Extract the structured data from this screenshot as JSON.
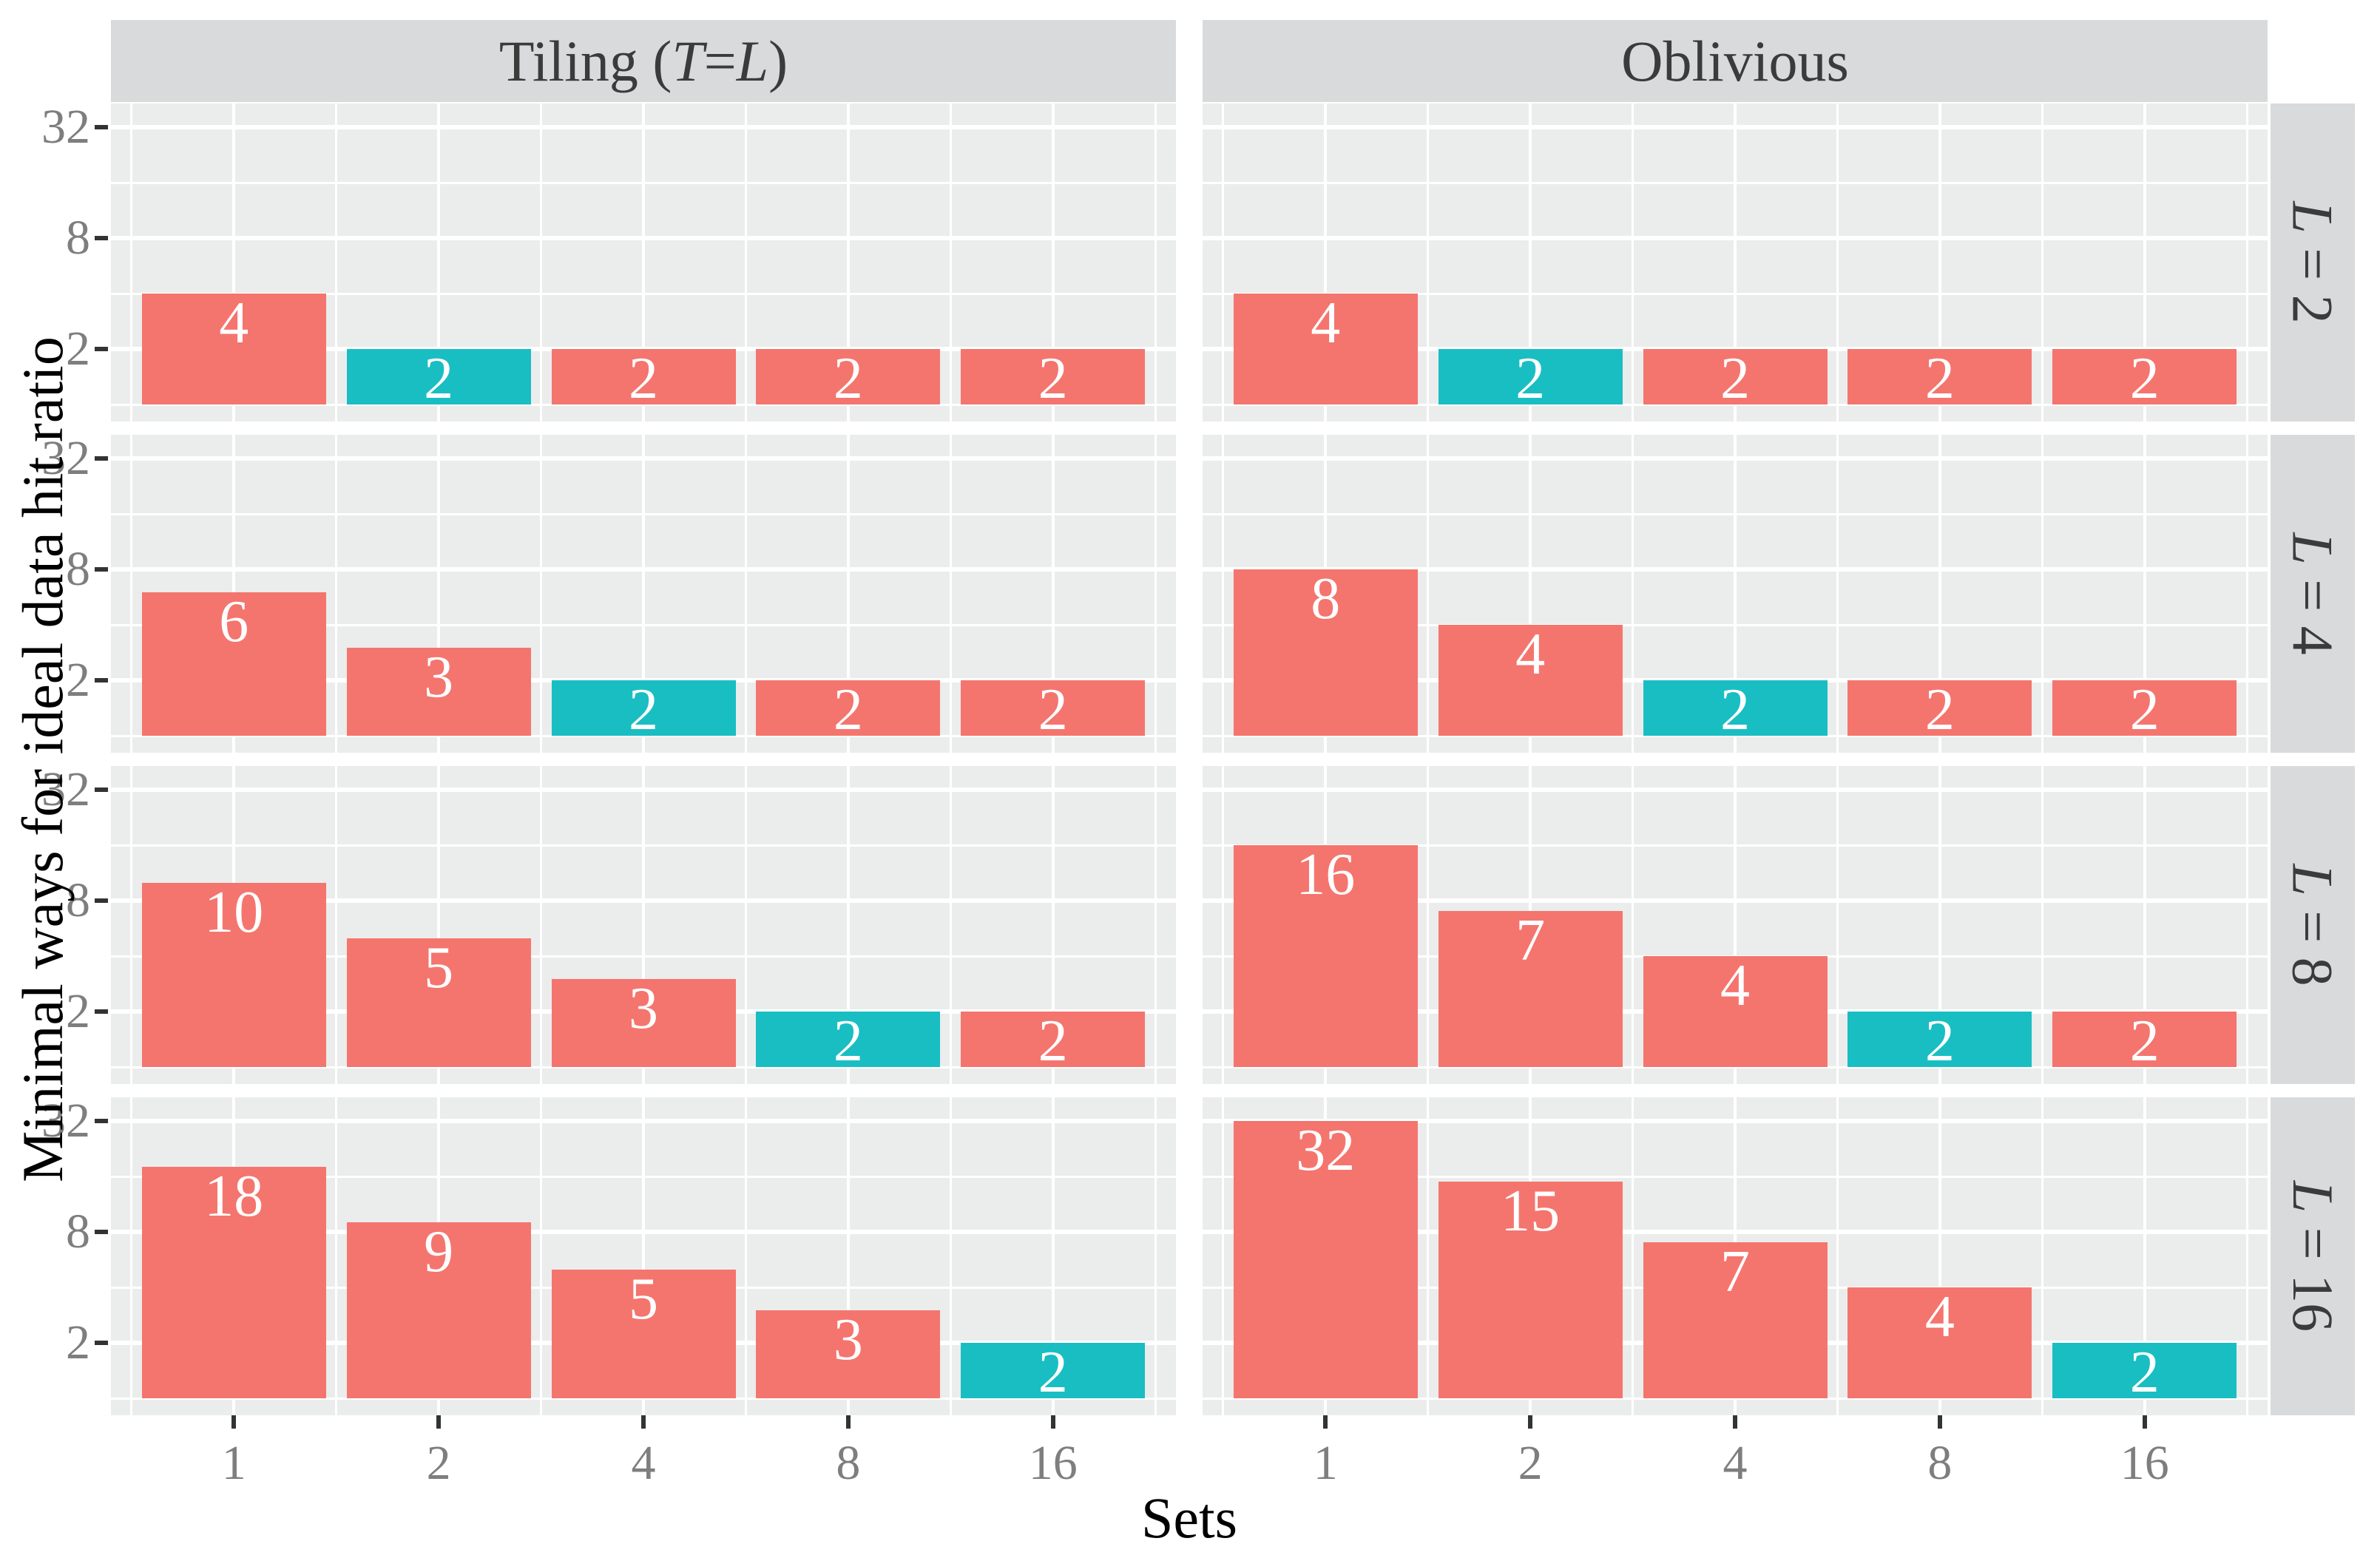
{
  "figure": {
    "y_axis_title": "Minimal ways for ideal data hit ratio",
    "x_axis_title": "Sets",
    "y_tick_labels": [
      "32",
      "8",
      "2"
    ],
    "x_tick_labels": [
      "1",
      "2",
      "4",
      "8",
      "16"
    ],
    "colors": {
      "bar_default": "#F4756E",
      "bar_highlight": "#19BEC3",
      "bar_label": "#FFFFFF",
      "panel_bg": "#EBECEC",
      "strip_bg": "#D9DADB",
      "strip_text": "#3B3B3B",
      "grid": "#FFFFFF",
      "tick_label": "#7E7E7E",
      "tick_mark": "#333333",
      "axis_title": "#000000"
    }
  },
  "chart_data": {
    "type": "bar",
    "title": "",
    "xlabel": "Sets",
    "ylabel": "Minimal ways for ideal data hit ratio",
    "x_categories": [
      1,
      2,
      4,
      8,
      16
    ],
    "y_scale": "log2",
    "y_breaks": [
      2,
      8,
      32
    ],
    "y_minor_breaks": [
      1,
      4,
      16
    ],
    "y_range": [
      1,
      38
    ],
    "grid": "on",
    "legend": "none",
    "col_facets": [
      "Tiling (T = L)",
      "Oblivious"
    ],
    "row_facets": [
      "L = 2",
      "L = 4",
      "L = 8",
      "L = 16"
    ],
    "facets": [
      {
        "col": 0,
        "row": 0,
        "col_label": "Tiling (T = L)",
        "row_label": "L = 2",
        "values": [
          4,
          2,
          2,
          2,
          2
        ],
        "highlight_x": 2
      },
      {
        "col": 0,
        "row": 1,
        "col_label": "Tiling (T = L)",
        "row_label": "L = 4",
        "values": [
          6,
          3,
          2,
          2,
          2
        ],
        "highlight_x": 4
      },
      {
        "col": 0,
        "row": 2,
        "col_label": "Tiling (T = L)",
        "row_label": "L = 8",
        "values": [
          10,
          5,
          3,
          2,
          2
        ],
        "highlight_x": 8
      },
      {
        "col": 0,
        "row": 3,
        "col_label": "Tiling (T = L)",
        "row_label": "L = 16",
        "values": [
          18,
          9,
          5,
          3,
          2
        ],
        "highlight_x": 16
      },
      {
        "col": 1,
        "row": 0,
        "col_label": "Oblivious",
        "row_label": "L = 2",
        "values": [
          4,
          2,
          2,
          2,
          2
        ],
        "highlight_x": 2
      },
      {
        "col": 1,
        "row": 1,
        "col_label": "Oblivious",
        "row_label": "L = 4",
        "values": [
          8,
          4,
          2,
          2,
          2
        ],
        "highlight_x": 4
      },
      {
        "col": 1,
        "row": 2,
        "col_label": "Oblivious",
        "row_label": "L = 8",
        "values": [
          16,
          7,
          4,
          2,
          2
        ],
        "highlight_x": 8
      },
      {
        "col": 1,
        "row": 3,
        "col_label": "Oblivious",
        "row_label": "L = 16",
        "values": [
          32,
          15,
          7,
          4,
          2
        ],
        "highlight_x": 16
      }
    ],
    "bar_value_labels_shown": true
  }
}
